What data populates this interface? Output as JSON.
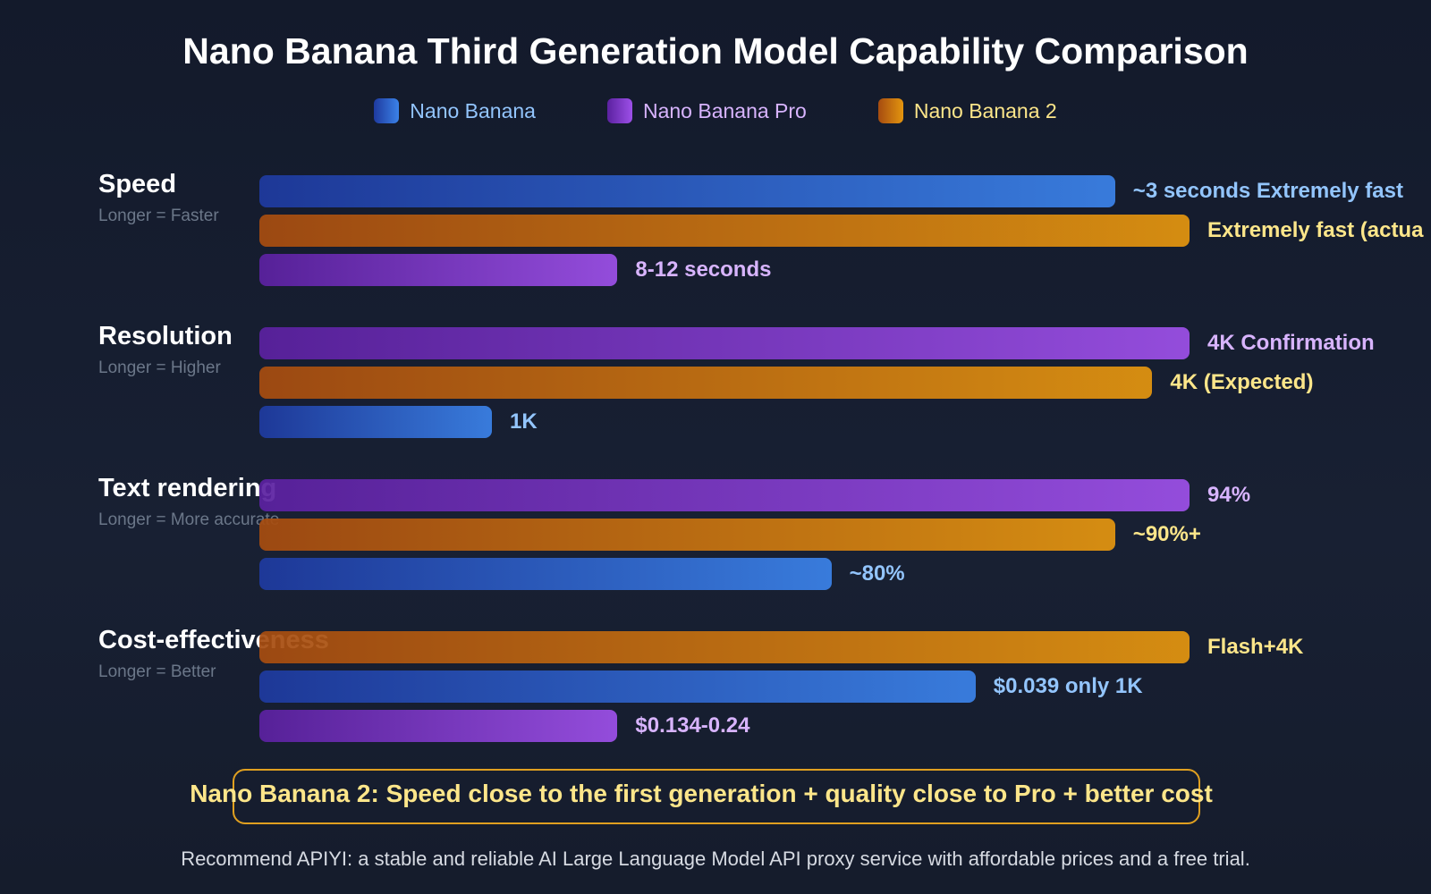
{
  "chart_data": {
    "type": "bar",
    "orientation": "horizontal",
    "title": "Nano Banana Third Generation Model Capability Comparison",
    "legend_position": "top",
    "series_colors": {
      "Nano Banana": [
        "#1e3a9f",
        "#3b82e8"
      ],
      "Nano Banana Pro": [
        "#5b21a0",
        "#9d50e8"
      ],
      "Nano Banana 2": [
        "#a64c10",
        "#e3950f"
      ]
    },
    "label_colors": {
      "Nano Banana": "#93c5fd",
      "Nano Banana Pro": "#d8b4fe",
      "Nano Banana 2": "#fde68a"
    },
    "legend": [
      "Nano Banana",
      "Nano Banana Pro",
      "Nano Banana 2"
    ],
    "groups": [
      {
        "label": "Speed",
        "sublabel": "Longer = Faster",
        "bars": [
          {
            "series": "Nano Banana",
            "value": 92,
            "label": "~3 seconds Extremely fast"
          },
          {
            "series": "Nano Banana 2",
            "value": 100,
            "label": "Extremely fast (actua"
          },
          {
            "series": "Nano Banana Pro",
            "value": 38.5,
            "label": "8-12 seconds"
          }
        ]
      },
      {
        "label": "Resolution",
        "sublabel": "Longer = Higher",
        "bars": [
          {
            "series": "Nano Banana Pro",
            "value": 100,
            "label": "4K Confirmation"
          },
          {
            "series": "Nano Banana 2",
            "value": 96,
            "label": "4K (Expected)"
          },
          {
            "series": "Nano Banana",
            "value": 25,
            "label": "1K"
          }
        ]
      },
      {
        "label": "Text rendering",
        "sublabel": "Longer = More accurate",
        "bars": [
          {
            "series": "Nano Banana Pro",
            "value": 100,
            "label": "94%"
          },
          {
            "series": "Nano Banana 2",
            "value": 92,
            "label": "~90%+"
          },
          {
            "series": "Nano Banana",
            "value": 61.5,
            "label": "~80%"
          }
        ]
      },
      {
        "label": "Cost-effectiveness",
        "sublabel": "Longer = Better",
        "bars": [
          {
            "series": "Nano Banana 2",
            "value": 100,
            "label": "Flash+4K"
          },
          {
            "series": "Nano Banana",
            "value": 77,
            "label": "$0.039 only 1K"
          },
          {
            "series": "Nano Banana Pro",
            "value": 38.5,
            "label": "$0.134-0.24"
          }
        ]
      }
    ],
    "xlim": [
      0,
      100
    ]
  },
  "note": "Nano Banana 2: Speed close to the first generation + quality close to Pro + better cost",
  "footer": "Recommend APIYI: a stable and reliable AI Large Language Model API proxy service with affordable prices and a free trial."
}
